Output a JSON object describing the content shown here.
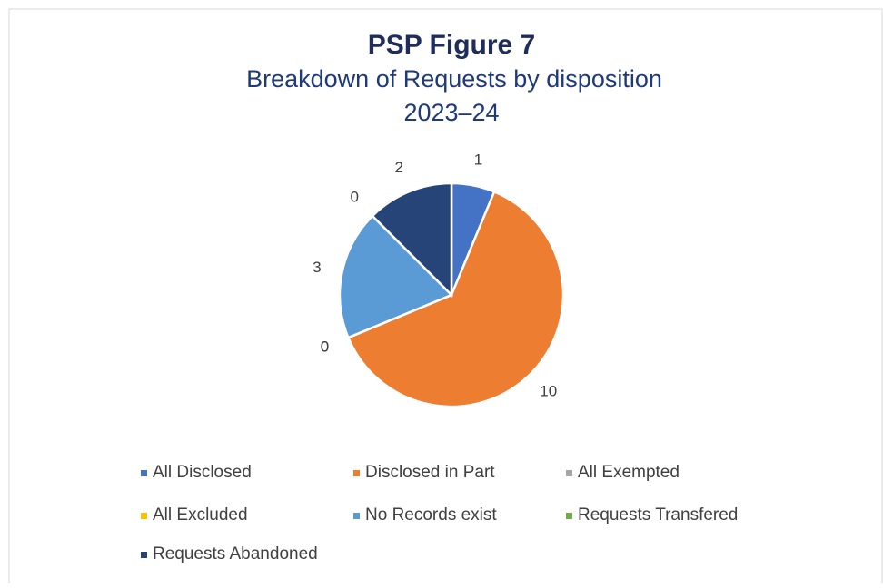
{
  "chart_data": {
    "type": "pie",
    "title": "PSP Figure 7",
    "subtitle": [
      "Breakdown of Requests by disposition",
      "2023–24"
    ],
    "categories": [
      "All Disclosed",
      "Disclosed in Part",
      "All Exempted",
      "All Excluded",
      "No Records exist",
      "Requests Transfered",
      "Requests Abandoned"
    ],
    "values": [
      1,
      10,
      0,
      0,
      3,
      0,
      2
    ],
    "colors": [
      "#4472c4",
      "#ed7d31",
      "#a5a5a5",
      "#ffc000",
      "#5b9bd5",
      "#70ad47",
      "#264478"
    ],
    "legend": "bottom"
  }
}
